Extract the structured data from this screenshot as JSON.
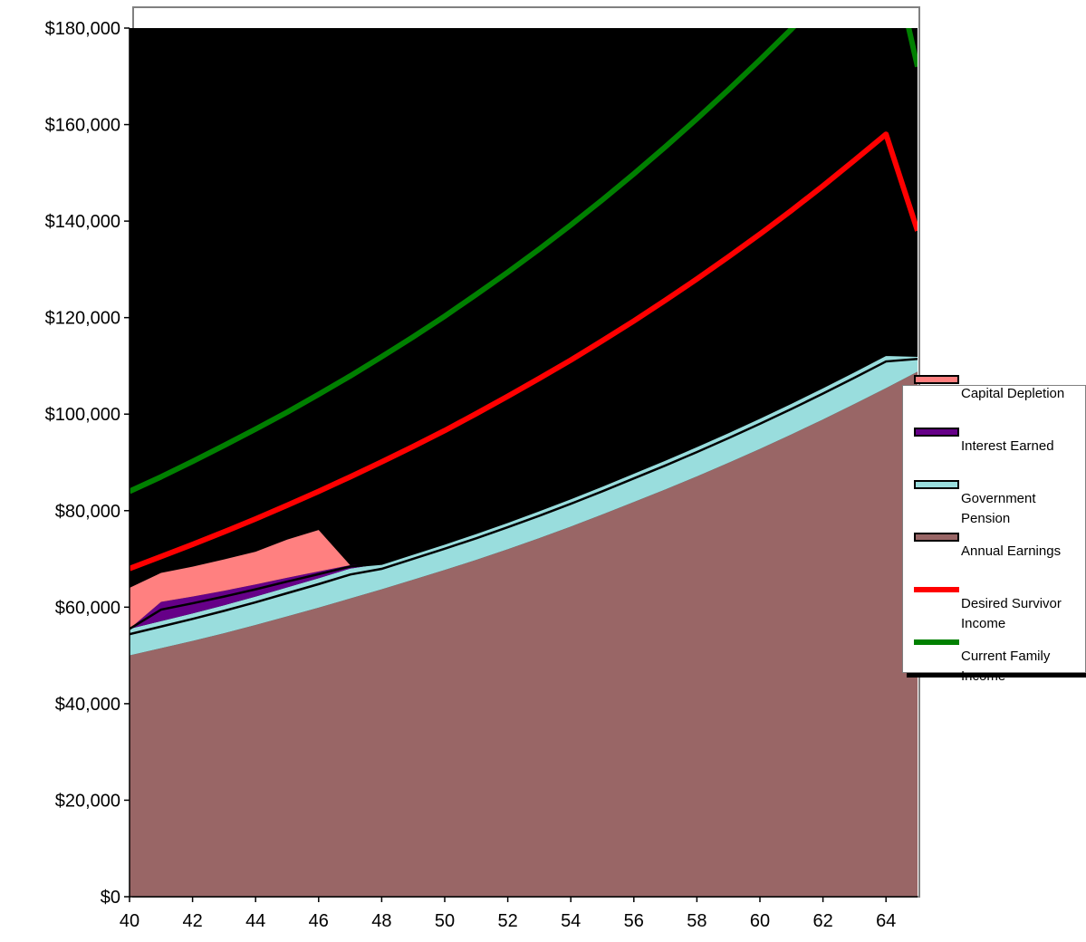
{
  "chart_data": {
    "type": "area",
    "title": "",
    "xlabel": "",
    "ylabel": "",
    "xlim": [
      40,
      65
    ],
    "ylim": [
      0,
      180000
    ],
    "x_ticks": [
      40,
      42,
      44,
      46,
      48,
      50,
      52,
      54,
      56,
      58,
      60,
      62,
      64
    ],
    "y_ticks": [
      "$0",
      "$20,000",
      "$40,000",
      "$60,000",
      "$80,000",
      "$100,000",
      "$120,000",
      "$140,000",
      "$160,000",
      "$180,000"
    ],
    "y_tick_values": [
      0,
      20000,
      40000,
      60000,
      80000,
      100000,
      120000,
      140000,
      160000,
      180000
    ],
    "plot_background": "#000000",
    "legend_position": "right",
    "x": [
      40,
      41,
      42,
      43,
      44,
      45,
      46,
      47,
      48,
      49,
      50,
      51,
      52,
      53,
      54,
      55,
      56,
      57,
      58,
      59,
      60,
      61,
      62,
      63,
      64,
      65
    ],
    "stacked_series": [
      {
        "name": "Annual Earnings",
        "color": "#996666",
        "values": [
          50000,
          51500,
          53000,
          54600,
          56300,
          58100,
          59900,
          61800,
          63700,
          65700,
          67700,
          69800,
          72000,
          74300,
          76700,
          79200,
          81800,
          84400,
          87100,
          89900,
          92800,
          95800,
          98900,
          102100,
          105400,
          108800
        ]
      },
      {
        "name": "Government Pension",
        "color": "#99dddd",
        "values": [
          5500,
          5600,
          5700,
          5800,
          5900,
          6000,
          6100,
          6200,
          5300,
          5400,
          5500,
          5600,
          5700,
          5800,
          5900,
          6000,
          6100,
          6200,
          6300,
          6400,
          6500,
          6600,
          6700,
          6800,
          6900,
          3300
        ]
      },
      {
        "name": "Interest Earned",
        "color": "#660088",
        "values": [
          0,
          4000,
          3500,
          3000,
          2500,
          2000,
          1400,
          700,
          0,
          0,
          0,
          0,
          0,
          0,
          0,
          0,
          0,
          0,
          0,
          0,
          0,
          0,
          0,
          0,
          0,
          0
        ]
      },
      {
        "name": "Capital Depletion",
        "color": "#ff8080",
        "values": [
          8500,
          6000,
          6200,
          6500,
          6800,
          7900,
          8600,
          0,
          0,
          0,
          0,
          0,
          0,
          0,
          0,
          0,
          0,
          0,
          0,
          0,
          0,
          0,
          0,
          0,
          0,
          0
        ]
      }
    ],
    "line_series": [
      {
        "name": "Desired Survivor Income",
        "color": "#ff0000",
        "values": [
          68000,
          70500,
          73000,
          75600,
          78300,
          81100,
          84000,
          87000,
          90100,
          93300,
          96600,
          100100,
          103700,
          107400,
          111200,
          115200,
          119300,
          123600,
          128000,
          132600,
          137300,
          142200,
          147300,
          152600,
          158000,
          138000
        ]
      },
      {
        "name": "Current Family Income",
        "color": "#008000",
        "values": [
          84000,
          87000,
          90200,
          93500,
          96900,
          100400,
          104100,
          107900,
          111900,
          116000,
          120300,
          124800,
          129400,
          134200,
          139200,
          144400,
          149800,
          155400,
          161200,
          167200,
          173400,
          179800,
          186500,
          193400,
          200600,
          172000
        ]
      }
    ]
  },
  "legend": {
    "items": [
      {
        "label": "Capital Depletion",
        "color": "#ff8080",
        "kind": "area"
      },
      {
        "label": "Interest Earned",
        "color": "#660088",
        "kind": "area"
      },
      {
        "label": "Government Pension",
        "color": "#99dddd",
        "kind": "area"
      },
      {
        "label": "Annual Earnings",
        "color": "#996666",
        "kind": "area"
      },
      {
        "label": "Desired Survivor Income",
        "color": "#ff0000",
        "kind": "line"
      },
      {
        "label": "Current Family Income",
        "color": "#008000",
        "kind": "line"
      }
    ]
  }
}
